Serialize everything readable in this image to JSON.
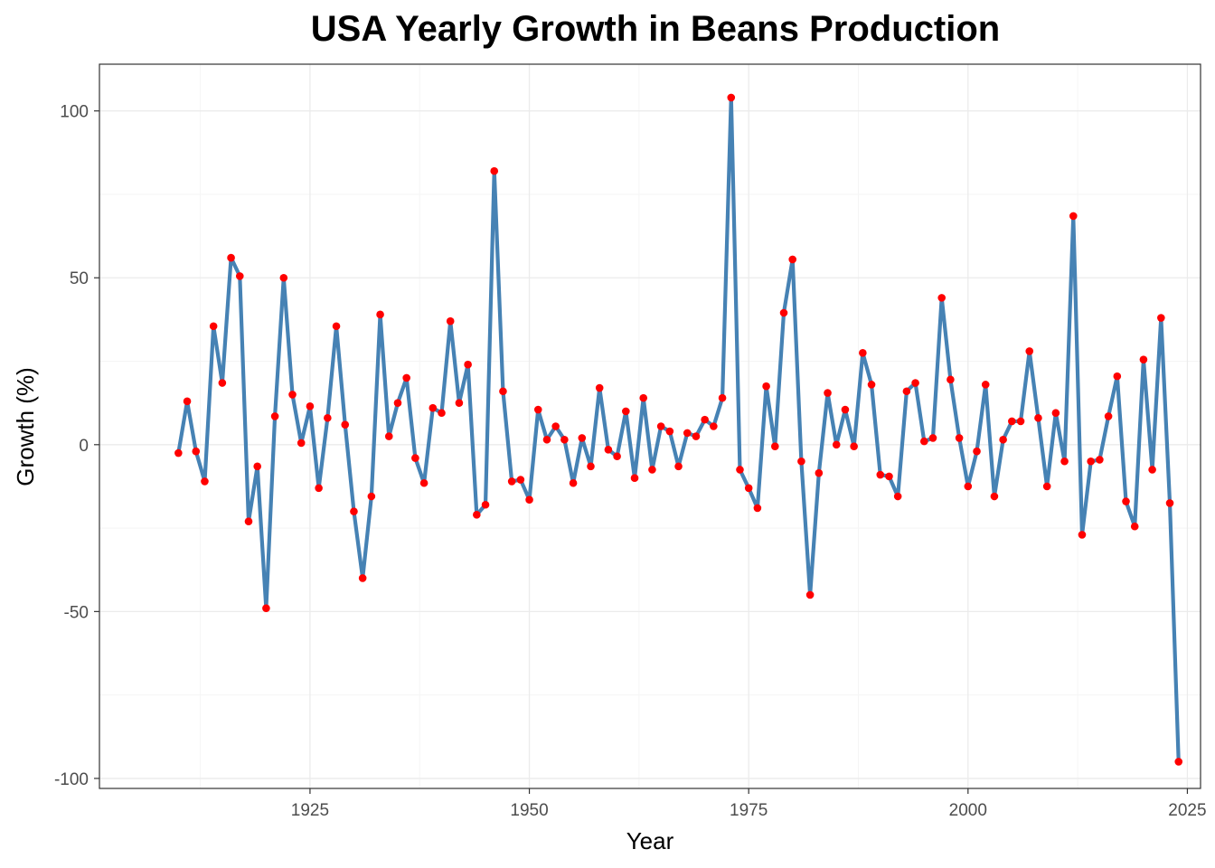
{
  "chart_data": {
    "type": "line",
    "title": "USA Yearly Growth in Beans Production",
    "xlabel": "Year",
    "ylabel": "Growth (%)",
    "xlim": [
      1901,
      2026.5
    ],
    "ylim": [
      -103,
      114
    ],
    "x_ticks": [
      1925,
      1950,
      1975,
      2000,
      2025
    ],
    "y_ticks": [
      -100,
      -50,
      0,
      50,
      100
    ],
    "x_tick_labels": [
      "1925",
      "1950",
      "1975",
      "2000",
      "2025"
    ],
    "y_tick_labels": [
      "-100",
      "-50",
      "0",
      "50",
      "100"
    ],
    "grid": true,
    "legend": "none",
    "colors": {
      "line": "#4682b4",
      "points": "#ff0000",
      "grid_major": "#ebebeb",
      "grid_minor": "#f5f5f5",
      "border": "#333333"
    },
    "series": [
      {
        "x": [
          1910,
          1911,
          1912,
          1913,
          1914,
          1915,
          1916,
          1917,
          1918,
          1919,
          1920,
          1921,
          1922,
          1923,
          1924,
          1925,
          1926,
          1927,
          1928,
          1929,
          1930,
          1931,
          1932,
          1933,
          1934,
          1935,
          1936,
          1937,
          1938,
          1939,
          1940,
          1941,
          1942,
          1943,
          1944,
          1945,
          1946,
          1947,
          1948,
          1949,
          1950,
          1951,
          1952,
          1953,
          1954,
          1955,
          1956,
          1957,
          1958,
          1959,
          1960,
          1961,
          1962,
          1963,
          1964,
          1965,
          1966,
          1967,
          1968,
          1969,
          1970,
          1971,
          1972,
          1973,
          1974,
          1975,
          1976,
          1977,
          1978,
          1979,
          1980,
          1981,
          1982,
          1983,
          1984,
          1985,
          1986,
          1987,
          1988,
          1989,
          1990,
          1991,
          1992,
          1993,
          1994,
          1995,
          1996,
          1997,
          1998,
          1999,
          2000,
          2001,
          2002,
          2003,
          2004,
          2005,
          2006,
          2007,
          2008,
          2009,
          2010,
          2011,
          2012,
          2013,
          2014,
          2015,
          2016,
          2017,
          2018,
          2019,
          2020,
          2021,
          2022,
          2023,
          2024
        ],
        "y": [
          -2.5,
          13,
          -2,
          -11,
          35.5,
          18.5,
          56,
          50.5,
          -23,
          -6.5,
          -49,
          8.5,
          50,
          15,
          0.5,
          11.5,
          -13,
          8,
          35.5,
          6,
          -20,
          -40,
          -15.5,
          39,
          2.5,
          12.5,
          20,
          -4,
          -11.5,
          11,
          9.5,
          37,
          12.5,
          24,
          -21,
          -18,
          82,
          16,
          -11,
          -10.5,
          -16.5,
          10.5,
          1.5,
          5.5,
          1.5,
          -11.5,
          2,
          -6.5,
          17,
          -1.5,
          -3.5,
          10,
          -10,
          14,
          -7.5,
          5.5,
          4,
          -6.5,
          3.5,
          2.5,
          7.5,
          5.5,
          14,
          104,
          -7.5,
          -13,
          -19,
          17.5,
          -0.5,
          39.5,
          55.5,
          -5,
          -45,
          -8.5,
          15.5,
          0,
          10.5,
          -0.5,
          27.5,
          18,
          -9,
          -9.5,
          -15.5,
          16,
          18.5,
          1,
          2,
          44,
          19.5,
          2,
          -12.5,
          -2,
          18,
          -15.5,
          1.5,
          7,
          7,
          28,
          8,
          -12.5,
          9.5,
          -5,
          68.5,
          -27,
          -5,
          -4.5,
          8.5,
          20.5,
          -17,
          -24.5,
          25.5,
          -7.5,
          38,
          -17.5,
          -95
        ]
      }
    ]
  }
}
